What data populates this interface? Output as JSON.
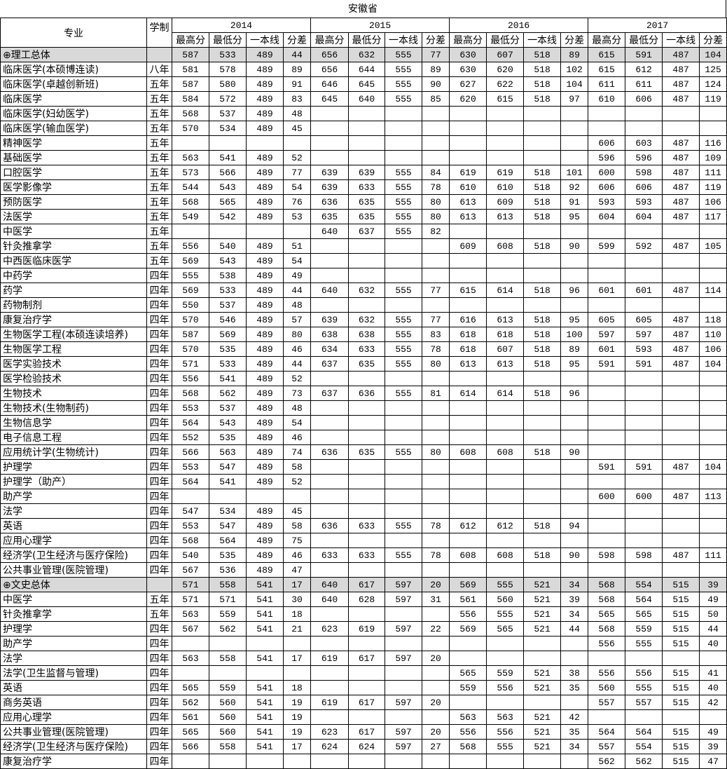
{
  "title": "安徽省",
  "header": {
    "major": "专业",
    "duration": "学制",
    "years": [
      "2014",
      "2015",
      "2016",
      "2017"
    ],
    "subcolumns": [
      "最高分",
      "最低分",
      "一本线",
      "分差"
    ]
  },
  "colors": {
    "summary_row_bg": "#d9d9d9",
    "border": "#000000"
  },
  "rows": [
    {
      "major": "⊕理工总体",
      "duration": "",
      "summary": true,
      "values": [
        "587",
        "533",
        "489",
        "44",
        "656",
        "632",
        "555",
        "77",
        "630",
        "607",
        "518",
        "89",
        "615",
        "591",
        "487",
        "104"
      ]
    },
    {
      "major": "临床医学(本硕博连读)",
      "duration": "八年",
      "values": [
        "581",
        "578",
        "489",
        "89",
        "656",
        "644",
        "555",
        "89",
        "630",
        "620",
        "518",
        "102",
        "615",
        "612",
        "487",
        "125"
      ]
    },
    {
      "major": "临床医学(卓越创新班)",
      "duration": "五年",
      "values": [
        "587",
        "580",
        "489",
        "91",
        "646",
        "645",
        "555",
        "90",
        "627",
        "622",
        "518",
        "104",
        "611",
        "611",
        "487",
        "124"
      ]
    },
    {
      "major": "临床医学",
      "duration": "五年",
      "values": [
        "584",
        "572",
        "489",
        "83",
        "645",
        "640",
        "555",
        "85",
        "620",
        "615",
        "518",
        "97",
        "610",
        "606",
        "487",
        "119"
      ]
    },
    {
      "major": "临床医学(妇幼医学)",
      "duration": "五年",
      "values": [
        "568",
        "537",
        "489",
        "48",
        "",
        "",
        "",
        "",
        "",
        "",
        "",
        "",
        "",
        "",
        "",
        ""
      ]
    },
    {
      "major": "临床医学(输血医学)",
      "duration": "五年",
      "values": [
        "570",
        "534",
        "489",
        "45",
        "",
        "",
        "",
        "",
        "",
        "",
        "",
        "",
        "",
        "",
        "",
        ""
      ]
    },
    {
      "major": "精神医学",
      "duration": "五年",
      "values": [
        "",
        "",
        "",
        "",
        "",
        "",
        "",
        "",
        "",
        "",
        "",
        "",
        "606",
        "603",
        "487",
        "116"
      ]
    },
    {
      "major": "基础医学",
      "duration": "五年",
      "values": [
        "563",
        "541",
        "489",
        "52",
        "",
        "",
        "",
        "",
        "",
        "",
        "",
        "",
        "596",
        "596",
        "487",
        "109"
      ]
    },
    {
      "major": "口腔医学",
      "duration": "五年",
      "values": [
        "573",
        "566",
        "489",
        "77",
        "639",
        "639",
        "555",
        "84",
        "619",
        "619",
        "518",
        "101",
        "600",
        "598",
        "487",
        "111"
      ]
    },
    {
      "major": "医学影像学",
      "duration": "五年",
      "values": [
        "544",
        "543",
        "489",
        "54",
        "639",
        "633",
        "555",
        "78",
        "610",
        "610",
        "518",
        "92",
        "606",
        "606",
        "487",
        "119"
      ]
    },
    {
      "major": "预防医学",
      "duration": "五年",
      "values": [
        "568",
        "565",
        "489",
        "76",
        "636",
        "635",
        "555",
        "80",
        "613",
        "609",
        "518",
        "91",
        "593",
        "593",
        "487",
        "106"
      ]
    },
    {
      "major": "法医学",
      "duration": "五年",
      "values": [
        "549",
        "542",
        "489",
        "53",
        "635",
        "635",
        "555",
        "80",
        "613",
        "613",
        "518",
        "95",
        "604",
        "604",
        "487",
        "117"
      ]
    },
    {
      "major": "中医学",
      "duration": "五年",
      "values": [
        "",
        "",
        "",
        "",
        "640",
        "637",
        "555",
        "82",
        "",
        "",
        "",
        "",
        "",
        "",
        "",
        ""
      ]
    },
    {
      "major": "针灸推拿学",
      "duration": "五年",
      "values": [
        "556",
        "540",
        "489",
        "51",
        "",
        "",
        "",
        "",
        "609",
        "608",
        "518",
        "90",
        "599",
        "592",
        "487",
        "105"
      ]
    },
    {
      "major": "中西医临床医学",
      "duration": "五年",
      "values": [
        "569",
        "543",
        "489",
        "54",
        "",
        "",
        "",
        "",
        "",
        "",
        "",
        "",
        "",
        "",
        "",
        ""
      ]
    },
    {
      "major": "中药学",
      "duration": "四年",
      "values": [
        "555",
        "538",
        "489",
        "49",
        "",
        "",
        "",
        "",
        "",
        "",
        "",
        "",
        "",
        "",
        "",
        ""
      ]
    },
    {
      "major": "药学",
      "duration": "四年",
      "values": [
        "569",
        "533",
        "489",
        "44",
        "640",
        "632",
        "555",
        "77",
        "615",
        "614",
        "518",
        "96",
        "601",
        "601",
        "487",
        "114"
      ]
    },
    {
      "major": "药物制剂",
      "duration": "四年",
      "values": [
        "550",
        "537",
        "489",
        "48",
        "",
        "",
        "",
        "",
        "",
        "",
        "",
        "",
        "",
        "",
        "",
        ""
      ]
    },
    {
      "major": "康复治疗学",
      "duration": "四年",
      "values": [
        "570",
        "546",
        "489",
        "57",
        "639",
        "632",
        "555",
        "77",
        "616",
        "613",
        "518",
        "95",
        "605",
        "605",
        "487",
        "118"
      ]
    },
    {
      "major": "生物医学工程(本硕连读培养)",
      "duration": "四年",
      "values": [
        "587",
        "569",
        "489",
        "80",
        "638",
        "638",
        "555",
        "83",
        "618",
        "618",
        "518",
        "100",
        "597",
        "597",
        "487",
        "110"
      ]
    },
    {
      "major": "生物医学工程",
      "duration": "四年",
      "values": [
        "570",
        "535",
        "489",
        "46",
        "634",
        "633",
        "555",
        "78",
        "618",
        "607",
        "518",
        "89",
        "601",
        "593",
        "487",
        "106"
      ]
    },
    {
      "major": "医学实验技术",
      "duration": "四年",
      "values": [
        "571",
        "533",
        "489",
        "44",
        "637",
        "635",
        "555",
        "80",
        "613",
        "613",
        "518",
        "95",
        "591",
        "591",
        "487",
        "104"
      ]
    },
    {
      "major": "医学检验技术",
      "duration": "四年",
      "values": [
        "556",
        "541",
        "489",
        "52",
        "",
        "",
        "",
        "",
        "",
        "",
        "",
        "",
        "",
        "",
        "",
        ""
      ]
    },
    {
      "major": "生物技术",
      "duration": "四年",
      "values": [
        "568",
        "562",
        "489",
        "73",
        "637",
        "636",
        "555",
        "81",
        "614",
        "614",
        "518",
        "96",
        "",
        "",
        "",
        ""
      ]
    },
    {
      "major": "生物技术(生物制药)",
      "duration": "四年",
      "values": [
        "553",
        "537",
        "489",
        "48",
        "",
        "",
        "",
        "",
        "",
        "",
        "",
        "",
        "",
        "",
        "",
        ""
      ]
    },
    {
      "major": "生物信息学",
      "duration": "四年",
      "values": [
        "564",
        "543",
        "489",
        "54",
        "",
        "",
        "",
        "",
        "",
        "",
        "",
        "",
        "",
        "",
        "",
        ""
      ]
    },
    {
      "major": "电子信息工程",
      "duration": "四年",
      "values": [
        "552",
        "535",
        "489",
        "46",
        "",
        "",
        "",
        "",
        "",
        "",
        "",
        "",
        "",
        "",
        "",
        ""
      ]
    },
    {
      "major": "应用统计学(生物统计)",
      "duration": "四年",
      "values": [
        "566",
        "563",
        "489",
        "74",
        "636",
        "635",
        "555",
        "80",
        "608",
        "608",
        "518",
        "90",
        "",
        "",
        "",
        ""
      ]
    },
    {
      "major": "护理学",
      "duration": "四年",
      "values": [
        "553",
        "547",
        "489",
        "58",
        "",
        "",
        "",
        "",
        "",
        "",
        "",
        "",
        "591",
        "591",
        "487",
        "104"
      ]
    },
    {
      "major": "护理学（助产）",
      "duration": "四年",
      "values": [
        "564",
        "541",
        "489",
        "52",
        "",
        "",
        "",
        "",
        "",
        "",
        "",
        "",
        "",
        "",
        "",
        ""
      ]
    },
    {
      "major": "助产学",
      "duration": "四年",
      "values": [
        "",
        "",
        "",
        "",
        "",
        "",
        "",
        "",
        "",
        "",
        "",
        "",
        "600",
        "600",
        "487",
        "113"
      ]
    },
    {
      "major": "法学",
      "duration": "四年",
      "values": [
        "547",
        "534",
        "489",
        "45",
        "",
        "",
        "",
        "",
        "",
        "",
        "",
        "",
        "",
        "",
        "",
        ""
      ]
    },
    {
      "major": "英语",
      "duration": "四年",
      "values": [
        "553",
        "547",
        "489",
        "58",
        "636",
        "633",
        "555",
        "78",
        "612",
        "612",
        "518",
        "94",
        "",
        "",
        "",
        ""
      ]
    },
    {
      "major": "应用心理学",
      "duration": "四年",
      "values": [
        "568",
        "564",
        "489",
        "75",
        "",
        "",
        "",
        "",
        "",
        "",
        "",
        "",
        "",
        "",
        "",
        ""
      ]
    },
    {
      "major": "经济学(卫生经济与医疗保险)",
      "duration": "四年",
      "values": [
        "540",
        "535",
        "489",
        "46",
        "633",
        "633",
        "555",
        "78",
        "608",
        "608",
        "518",
        "90",
        "598",
        "598",
        "487",
        "111"
      ]
    },
    {
      "major": "公共事业管理(医院管理)",
      "duration": "四年",
      "values": [
        "567",
        "536",
        "489",
        "47",
        "",
        "",
        "",
        "",
        "",
        "",
        "",
        "",
        "",
        "",
        "",
        ""
      ]
    },
    {
      "major": "⊕文史总体",
      "duration": "",
      "summary": true,
      "values": [
        "571",
        "558",
        "541",
        "17",
        "640",
        "617",
        "597",
        "20",
        "569",
        "555",
        "521",
        "34",
        "568",
        "554",
        "515",
        "39"
      ]
    },
    {
      "major": "中医学",
      "duration": "五年",
      "values": [
        "571",
        "571",
        "541",
        "30",
        "640",
        "628",
        "597",
        "31",
        "561",
        "560",
        "521",
        "39",
        "568",
        "564",
        "515",
        "49"
      ]
    },
    {
      "major": "针灸推拿学",
      "duration": "五年",
      "values": [
        "563",
        "559",
        "541",
        "18",
        "",
        "",
        "",
        "",
        "556",
        "555",
        "521",
        "34",
        "565",
        "565",
        "515",
        "50"
      ]
    },
    {
      "major": "护理学",
      "duration": "四年",
      "values": [
        "567",
        "562",
        "541",
        "21",
        "623",
        "619",
        "597",
        "22",
        "569",
        "565",
        "521",
        "44",
        "568",
        "559",
        "515",
        "44"
      ]
    },
    {
      "major": "助产学",
      "duration": "四年",
      "values": [
        "",
        "",
        "",
        "",
        "",
        "",
        "",
        "",
        "",
        "",
        "",
        "",
        "556",
        "555",
        "515",
        "40"
      ]
    },
    {
      "major": "法学",
      "duration": "四年",
      "values": [
        "563",
        "558",
        "541",
        "17",
        "619",
        "617",
        "597",
        "20",
        "",
        "",
        "",
        "",
        "",
        "",
        "",
        ""
      ]
    },
    {
      "major": "法学(卫生监督与管理)",
      "duration": "四年",
      "values": [
        "",
        "",
        "",
        "",
        "",
        "",
        "",
        "",
        "565",
        "559",
        "521",
        "38",
        "556",
        "556",
        "515",
        "41"
      ]
    },
    {
      "major": "英语",
      "duration": "四年",
      "values": [
        "565",
        "559",
        "541",
        "18",
        "",
        "",
        "",
        "",
        "559",
        "556",
        "521",
        "35",
        "560",
        "555",
        "515",
        "40"
      ]
    },
    {
      "major": "商务英语",
      "duration": "四年",
      "values": [
        "562",
        "560",
        "541",
        "19",
        "619",
        "617",
        "597",
        "20",
        "",
        "",
        "",
        "",
        "557",
        "557",
        "515",
        "42"
      ]
    },
    {
      "major": "应用心理学",
      "duration": "四年",
      "values": [
        "561",
        "560",
        "541",
        "19",
        "",
        "",
        "",
        "",
        "563",
        "563",
        "521",
        "42",
        "",
        "",
        "",
        ""
      ]
    },
    {
      "major": "公共事业管理(医院管理)",
      "duration": "四年",
      "values": [
        "565",
        "560",
        "541",
        "19",
        "623",
        "617",
        "597",
        "20",
        "556",
        "556",
        "521",
        "35",
        "564",
        "564",
        "515",
        "49"
      ]
    },
    {
      "major": "经济学(卫生经济与医疗保险)",
      "duration": "四年",
      "values": [
        "566",
        "558",
        "541",
        "17",
        "624",
        "624",
        "597",
        "27",
        "568",
        "555",
        "521",
        "34",
        "557",
        "554",
        "515",
        "39"
      ]
    },
    {
      "major": "康复治疗学",
      "duration": "四年",
      "values": [
        "",
        "",
        "",
        "",
        "",
        "",
        "",
        "",
        "",
        "",
        "",
        "",
        "562",
        "562",
        "515",
        "47"
      ]
    }
  ]
}
